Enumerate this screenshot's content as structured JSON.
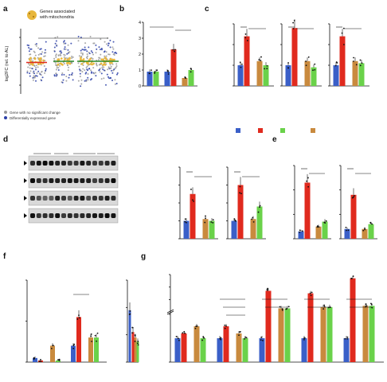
{
  "colors": {
    "AL": "#3a5fc8",
    "DR": "#e02a1e",
    "ALDR": "#6ad24a",
    "DRAL": "#c98a3e",
    "mito_dot": "#e8b73c",
    "gray_dot": "#9a9a9a",
    "blue_dot": "#2b3fa8"
  },
  "legend": {
    "items": [
      {
        "key": "AL",
        "label": "AL"
      },
      {
        "key": "DR",
        "label": "DR"
      },
      {
        "key": "ALDR",
        "label": "ALDR"
      },
      {
        "key": "DRAL",
        "label": "DRAL"
      }
    ]
  },
  "panel_a": {
    "letter": "a",
    "legend_title": "Genes associated with mitochondria",
    "ylabel": "log2FC (rel. to AL)",
    "ticks": [
      "2",
      "0",
      "-2"
    ],
    "groups": [
      "DR",
      "DRAL",
      "ALDR",
      "ALDR"
    ],
    "group_sub": "(5 m)",
    "sig": [
      "***",
      "**"
    ],
    "legend_gray": "Gene with no significant change",
    "legend_blue": "Differentially expressed gene"
  },
  "panel_b": {
    "letter": "b",
    "title": "PGC1α",
    "ylabel": "Norm. counts [x10³]",
    "ticks": [
      "4",
      "3",
      "2",
      "1",
      "0"
    ],
    "xlabels": [
      "Switch (5 m)",
      "Chronic",
      "Switch"
    ],
    "sig": [
      "p=0.0002",
      "***"
    ]
  },
  "panel_c": {
    "letter": "c",
    "ylabel": "mtDNA relative copy number",
    "ticks": [
      "3",
      "2",
      "1",
      "0"
    ],
    "subpanels": [
      {
        "title": "ATP6",
        "sig": [
          "***",
          "***"
        ]
      },
      {
        "title": "COX1",
        "sig": [
          "***",
          "***"
        ]
      },
      {
        "title": "RNR2",
        "sig": [
          "***",
          "***"
        ]
      }
    ],
    "xlabels": [
      "Chronic",
      "Switch"
    ]
  },
  "panel_d": {
    "letter": "d",
    "lanes": [
      "AL",
      "DR",
      "ALDR",
      "DRAL"
    ],
    "blots": [
      "NDUFA9",
      "α-tubulin",
      "mtCO1",
      "α-tubulin"
    ],
    "ylabel": "Relative protein level",
    "subpanels": [
      {
        "title": "mtCO1",
        "sig": [
          "p=0.0027",
          "p=0.01"
        ]
      },
      {
        "title": "NDUFA9",
        "sig": [
          "***",
          "p=0.0136"
        ]
      }
    ],
    "ticks": [
      "4",
      "3",
      "2",
      "1",
      "0"
    ],
    "xlabels": [
      "Chronic",
      "Switch"
    ]
  },
  "panel_e": {
    "letter": "e",
    "ylabel": "pg lipid / mg tissue",
    "subpanels": [
      {
        "title": "Propionyl-CoA",
        "ticks": [
          "30",
          "20",
          "10",
          "0"
        ],
        "sig": [
          "***",
          "***"
        ]
      },
      {
        "title": "Succinyl-CoA",
        "ticks": [
          "15",
          "10",
          "5",
          "0"
        ],
        "sig": [
          "p=0.0015",
          "p=0.0001"
        ]
      }
    ],
    "xlabels": [
      "Chronic",
      "Switch"
    ]
  },
  "panel_f": {
    "letter": "f",
    "ylabel1": "Norm. counts [x10²]",
    "ylabel2": "Norm. counts [x10³]",
    "ticks1": [
      "1.0",
      "0.5",
      "0"
    ],
    "ticks2": [
      "0.6",
      "0.4",
      "0.2",
      "0"
    ],
    "subpanels": [
      {
        "title": "Ucp1"
      },
      {
        "title": "Cidea",
        "sig": "p=0.0026"
      },
      {
        "title": "Dio2"
      }
    ],
    "xlabels": [
      "Chronic",
      "Switch"
    ]
  },
  "panel_g": {
    "letter": "g",
    "ylabel": "mRNA fold change (norm. to Pol2n)",
    "ticks": [
      "30",
      "20",
      "10",
      "2",
      "0"
    ],
    "subpanels": [
      {
        "title": "Ucp1",
        "sig": []
      },
      {
        "title": "Srebf1",
        "sig": [
          "p=0.0003",
          "p=0.0041",
          "p=0.0047"
        ]
      },
      {
        "title": "Acaca",
        "sig": [
          "***",
          "***"
        ]
      },
      {
        "title": "Fasn",
        "sig": [
          "***",
          "***"
        ]
      },
      {
        "title": "Elovl6",
        "sig": [
          "***",
          "***"
        ]
      }
    ],
    "xlabels": [
      "Chronic",
      "Switch"
    ]
  },
  "chart_data": [
    {
      "type": "bar",
      "id": "b",
      "title": "PGC1α",
      "ylabel": "Norm. counts [x10³]",
      "ylim": [
        0,
        4
      ],
      "categories": [
        "Switch (5 m)",
        "Chronic",
        "Switch"
      ],
      "series": [
        {
          "name": "AL",
          "values": [
            0.9,
            0.9,
            null
          ]
        },
        {
          "name": "DR",
          "values": [
            null,
            2.3,
            null
          ]
        },
        {
          "name": "ALDR",
          "values": [
            0.9,
            null,
            1.0
          ]
        },
        {
          "name": "DRAL",
          "values": [
            null,
            null,
            0.5
          ]
        }
      ]
    },
    {
      "type": "bar",
      "id": "c",
      "ylabel": "mtDNA relative copy number",
      "ylim": [
        0,
        3
      ],
      "categories": [
        "ATP6 Chronic",
        "ATP6 Switch",
        "COX1 Chronic",
        "COX1 Switch",
        "RNR2 Chronic",
        "RNR2 Switch"
      ],
      "series": [
        {
          "name": "AL",
          "values": [
            1.0,
            null,
            1.0,
            null,
            1.0,
            null
          ]
        },
        {
          "name": "DR",
          "values": [
            2.4,
            null,
            2.8,
            null,
            2.4,
            null
          ]
        },
        {
          "name": "DRAL",
          "values": [
            null,
            1.2,
            null,
            1.2,
            null,
            1.2
          ]
        },
        {
          "name": "ALDR",
          "values": [
            null,
            1.0,
            null,
            0.9,
            null,
            1.1
          ]
        }
      ]
    },
    {
      "type": "bar",
      "id": "d",
      "ylabel": "Relative protein level",
      "ylim": [
        0,
        4
      ],
      "categories": [
        "mtCO1 Chronic",
        "mtCO1 Switch",
        "NDUFA9 Chronic",
        "NDUFA9 Switch"
      ],
      "series": [
        {
          "name": "AL",
          "values": [
            1.0,
            null,
            1.0,
            null
          ]
        },
        {
          "name": "DR",
          "values": [
            2.5,
            null,
            3.0,
            null
          ]
        },
        {
          "name": "DRAL",
          "values": [
            null,
            1.1,
            null,
            1.1
          ]
        },
        {
          "name": "ALDR",
          "values": [
            null,
            1.0,
            null,
            1.8
          ]
        }
      ]
    },
    {
      "type": "bar",
      "id": "e",
      "ylabel": "pg lipid / mg tissue",
      "categories": [
        "Propionyl-CoA Chronic",
        "Propionyl-CoA Switch",
        "Succinyl-CoA Chronic",
        "Succinyl-CoA Switch"
      ],
      "series": [
        {
          "name": "AL",
          "values": [
            3,
            null,
            2,
            null
          ]
        },
        {
          "name": "DR",
          "values": [
            23,
            null,
            9,
            null
          ]
        },
        {
          "name": "DRAL",
          "values": [
            null,
            5,
            null,
            2
          ]
        },
        {
          "name": "ALDR",
          "values": [
            null,
            7,
            null,
            3
          ]
        }
      ]
    },
    {
      "type": "bar",
      "id": "f",
      "categories": [
        "Ucp1 Chronic",
        "Ucp1 Switch",
        "Cidea Chronic",
        "Cidea Switch",
        "Dio2 Chronic",
        "Dio2 Switch"
      ],
      "series": [
        {
          "name": "AL",
          "values": [
            0.05,
            null,
            0.2,
            null,
            0.38,
            null
          ]
        },
        {
          "name": "DR",
          "values": [
            0.02,
            null,
            0.55,
            null,
            0.22,
            null
          ]
        },
        {
          "name": "DRAL",
          "values": [
            null,
            0.2,
            null,
            0.3,
            null,
            0.18
          ]
        },
        {
          "name": "ALDR",
          "values": [
            null,
            0.02,
            null,
            0.3,
            null,
            0.15
          ]
        }
      ]
    },
    {
      "type": "bar",
      "id": "g",
      "ylabel": "mRNA fold change (norm. to Pol2n)",
      "categories": [
        "Ucp1 Chronic",
        "Ucp1 Switch",
        "Srebf1 Chronic",
        "Srebf1 Switch",
        "Acaca Chronic",
        "Acaca Switch",
        "Fasn Chronic",
        "Fasn Switch",
        "Elovl6 Chronic",
        "Elovl6 Switch"
      ],
      "series": [
        {
          "name": "AL",
          "values": [
            1,
            null,
            1,
            null,
            1,
            null,
            1,
            null,
            1,
            null
          ]
        },
        {
          "name": "DR",
          "values": [
            1.2,
            null,
            1.5,
            null,
            17,
            null,
            15,
            null,
            27,
            null
          ]
        },
        {
          "name": "DRAL",
          "values": [
            null,
            1.5,
            null,
            1.2,
            null,
            3,
            null,
            4,
            null,
            5
          ]
        },
        {
          "name": "ALDR",
          "values": [
            null,
            1,
            null,
            1,
            null,
            3,
            null,
            4,
            null,
            5
          ]
        }
      ]
    }
  ]
}
